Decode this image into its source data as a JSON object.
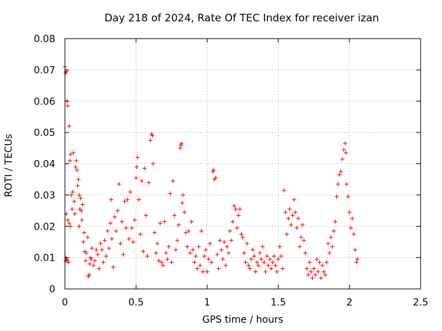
{
  "chart_data": {
    "type": "scatter",
    "title": "Day 218 of 2024, Rate Of TEC Index for receiver izan",
    "xlabel": "GPS time / hours",
    "ylabel": "ROTI / TECUs",
    "xlim": [
      0,
      2.5
    ],
    "ylim": [
      0,
      0.08
    ],
    "xticks": [
      {
        "value": 0,
        "label": "0"
      },
      {
        "value": 0.5,
        "label": "0.5"
      },
      {
        "value": 1,
        "label": "1"
      },
      {
        "value": 1.5,
        "label": "1.5"
      },
      {
        "value": 2,
        "label": "2"
      },
      {
        "value": 2.5,
        "label": "2.5"
      }
    ],
    "yticks": [
      {
        "value": 0,
        "label": "0"
      },
      {
        "value": 0.01,
        "label": "0.01"
      },
      {
        "value": 0.02,
        "label": "0.02"
      },
      {
        "value": 0.03,
        "label": "0.03"
      },
      {
        "value": 0.04,
        "label": "0.04"
      },
      {
        "value": 0.05,
        "label": "0.05"
      },
      {
        "value": 0.06,
        "label": "0.06"
      },
      {
        "value": 0.07,
        "label": "0.07"
      },
      {
        "value": 0.08,
        "label": "0.08"
      }
    ],
    "grid": true,
    "marker": "+",
    "series": [
      {
        "name": "ROTI",
        "color": "#ff0000",
        "points": [
          [
            0.0,
            0.071
          ],
          [
            0.005,
            0.069
          ],
          [
            0.01,
            0.0695
          ],
          [
            0.01,
            0.024
          ],
          [
            0.005,
            0.009
          ],
          [
            0.008,
            0.01
          ],
          [
            0.012,
            0.0095
          ],
          [
            0.015,
            0.06
          ],
          [
            0.02,
            0.0585
          ],
          [
            0.02,
            0.022
          ],
          [
            0.018,
            0.009
          ],
          [
            0.025,
            0.0085
          ],
          [
            0.03,
            0.052
          ],
          [
            0.03,
            0.021
          ],
          [
            0.035,
            0.041
          ],
          [
            0.04,
            0.043
          ],
          [
            0.045,
            0.03
          ],
          [
            0.04,
            0.02
          ],
          [
            0.05,
            0.0255
          ],
          [
            0.055,
            0.031
          ],
          [
            0.06,
            0.0435
          ],
          [
            0.065,
            0.028
          ],
          [
            0.07,
            0.024
          ],
          [
            0.075,
            0.039
          ],
          [
            0.08,
            0.041
          ],
          [
            0.085,
            0.038
          ],
          [
            0.09,
            0.033
          ],
          [
            0.095,
            0.035
          ],
          [
            0.1,
            0.03
          ],
          [
            0.1,
            0.02
          ],
          [
            0.105,
            0.0255
          ],
          [
            0.11,
            0.029
          ],
          [
            0.115,
            0.025
          ],
          [
            0.12,
            0.022
          ],
          [
            0.125,
            0.027
          ],
          [
            0.13,
            0.015
          ],
          [
            0.135,
            0.018
          ],
          [
            0.14,
            0.012
          ],
          [
            0.145,
            0.009
          ],
          [
            0.15,
            0.0115
          ],
          [
            0.16,
            0.0165
          ],
          [
            0.165,
            0.004
          ],
          [
            0.17,
            0.0045
          ],
          [
            0.175,
            0.008
          ],
          [
            0.18,
            0.01
          ],
          [
            0.185,
            0.0095
          ],
          [
            0.19,
            0.013
          ],
          [
            0.2,
            0.0075
          ],
          [
            0.21,
            0.009
          ],
          [
            0.22,
            0.0125
          ],
          [
            0.23,
            0.011
          ],
          [
            0.24,
            0.0065
          ],
          [
            0.25,
            0.0145
          ],
          [
            0.26,
            0.0125
          ],
          [
            0.27,
            0.0085
          ],
          [
            0.28,
            0.0155
          ],
          [
            0.29,
            0.0105
          ],
          [
            0.3,
            0.0185
          ],
          [
            0.31,
            0.013
          ],
          [
            0.32,
            0.021
          ],
          [
            0.325,
            0.0285
          ],
          [
            0.33,
            0.016
          ],
          [
            0.34,
            0.007
          ],
          [
            0.35,
            0.023
          ],
          [
            0.36,
            0.0185
          ],
          [
            0.37,
            0.025
          ],
          [
            0.38,
            0.0335
          ],
          [
            0.39,
            0.0145
          ],
          [
            0.4,
            0.0215
          ],
          [
            0.41,
            0.011
          ],
          [
            0.42,
            0.028
          ],
          [
            0.43,
            0.0195
          ],
          [
            0.44,
            0.0285
          ],
          [
            0.45,
            0.016
          ],
          [
            0.46,
            0.031
          ],
          [
            0.47,
            0.0195
          ],
          [
            0.48,
            0.015
          ],
          [
            0.49,
            0.022
          ],
          [
            0.5,
            0.0355
          ],
          [
            0.505,
            0.039
          ],
          [
            0.51,
            0.042
          ],
          [
            0.52,
            0.0285
          ],
          [
            0.53,
            0.0175
          ],
          [
            0.54,
            0.0345
          ],
          [
            0.55,
            0.012
          ],
          [
            0.56,
            0.0385
          ],
          [
            0.57,
            0.0235
          ],
          [
            0.58,
            0.0105
          ],
          [
            0.59,
            0.034
          ],
          [
            0.6,
            0.0475
          ],
          [
            0.61,
            0.0495
          ],
          [
            0.615,
            0.049
          ],
          [
            0.62,
            0.04
          ],
          [
            0.63,
            0.018
          ],
          [
            0.64,
            0.0115
          ],
          [
            0.65,
            0.0145
          ],
          [
            0.66,
            0.009
          ],
          [
            0.67,
            0.021
          ],
          [
            0.68,
            0.0085
          ],
          [
            0.69,
            0.0075
          ],
          [
            0.7,
            0.0215
          ],
          [
            0.71,
            0.0115
          ],
          [
            0.72,
            0.0095
          ],
          [
            0.73,
            0.0135
          ],
          [
            0.74,
            0.0305
          ],
          [
            0.75,
            0.0085
          ],
          [
            0.76,
            0.0345
          ],
          [
            0.77,
            0.0235
          ],
          [
            0.78,
            0.0125
          ],
          [
            0.79,
            0.0155
          ],
          [
            0.8,
            0.0205
          ],
          [
            0.81,
            0.045
          ],
          [
            0.815,
            0.046
          ],
          [
            0.82,
            0.0465
          ],
          [
            0.825,
            0.0275
          ],
          [
            0.83,
            0.03
          ],
          [
            0.84,
            0.0245
          ],
          [
            0.85,
            0.018
          ],
          [
            0.86,
            0.0135
          ],
          [
            0.87,
            0.0185
          ],
          [
            0.88,
            0.0115
          ],
          [
            0.89,
            0.0215
          ],
          [
            0.9,
            0.0125
          ],
          [
            0.91,
            0.0085
          ],
          [
            0.92,
            0.0105
          ],
          [
            0.93,
            0.0065
          ],
          [
            0.94,
            0.0135
          ],
          [
            0.95,
            0.0075
          ],
          [
            0.96,
            0.0185
          ],
          [
            0.97,
            0.0055
          ],
          [
            0.98,
            0.0105
          ],
          [
            0.99,
            0.0125
          ],
          [
            1.0,
            0.0055
          ],
          [
            1.01,
            0.0095
          ],
          [
            1.02,
            0.0145
          ],
          [
            1.03,
            0.0085
          ],
          [
            1.04,
            0.0375
          ],
          [
            1.045,
            0.038
          ],
          [
            1.05,
            0.035
          ],
          [
            1.06,
            0.0355
          ],
          [
            1.07,
            0.011
          ],
          [
            1.08,
            0.0065
          ],
          [
            1.09,
            0.0155
          ],
          [
            1.1,
            0.0125
          ],
          [
            1.11,
            0.0095
          ],
          [
            1.12,
            0.015
          ],
          [
            1.13,
            0.0075
          ],
          [
            1.14,
            0.0135
          ],
          [
            1.15,
            0.0115
          ],
          [
            1.16,
            0.0185
          ],
          [
            1.17,
            0.0155
          ],
          [
            1.18,
            0.0215
          ],
          [
            1.19,
            0.0265
          ],
          [
            1.2,
            0.0255
          ],
          [
            1.21,
            0.0195
          ],
          [
            1.22,
            0.0235
          ],
          [
            1.23,
            0.0255
          ],
          [
            1.24,
            0.0175
          ],
          [
            1.25,
            0.0165
          ],
          [
            1.26,
            0.0115
          ],
          [
            1.27,
            0.0085
          ],
          [
            1.28,
            0.0145
          ],
          [
            1.29,
            0.0075
          ],
          [
            1.3,
            0.0065
          ],
          [
            1.31,
            0.0095
          ],
          [
            1.32,
            0.0125
          ],
          [
            1.33,
            0.0105
          ],
          [
            1.34,
            0.0055
          ],
          [
            1.35,
            0.0085
          ],
          [
            1.36,
            0.0075
          ],
          [
            1.37,
            0.0115
          ],
          [
            1.38,
            0.0095
          ],
          [
            1.39,
            0.0135
          ],
          [
            1.4,
            0.0085
          ],
          [
            1.41,
            0.0055
          ],
          [
            1.42,
            0.0105
          ],
          [
            1.43,
            0.0075
          ],
          [
            1.44,
            0.0095
          ],
          [
            1.45,
            0.0065
          ],
          [
            1.46,
            0.0085
          ],
          [
            1.47,
            0.0105
          ],
          [
            1.48,
            0.0075
          ],
          [
            1.49,
            0.0055
          ],
          [
            1.5,
            0.0095
          ],
          [
            1.51,
            0.0135
          ],
          [
            1.52,
            0.0105
          ],
          [
            1.53,
            0.0065
          ],
          [
            1.54,
            0.0315
          ],
          [
            1.55,
            0.0245
          ],
          [
            1.56,
            0.0175
          ],
          [
            1.57,
            0.0225
          ],
          [
            1.58,
            0.0255
          ],
          [
            1.59,
            0.0205
          ],
          [
            1.6,
            0.0235
          ],
          [
            1.61,
            0.0285
          ],
          [
            1.62,
            0.0245
          ],
          [
            1.63,
            0.0195
          ],
          [
            1.64,
            0.0225
          ],
          [
            1.65,
            0.0135
          ],
          [
            1.66,
            0.0165
          ],
          [
            1.67,
            0.0205
          ],
          [
            1.68,
            0.0155
          ],
          [
            1.69,
            0.0115
          ],
          [
            1.7,
            0.0065
          ],
          [
            1.71,
            0.0045
          ],
          [
            1.72,
            0.0085
          ],
          [
            1.73,
            0.0055
          ],
          [
            1.74,
            0.0035
          ],
          [
            1.75,
            0.0065
          ],
          [
            1.76,
            0.0045
          ],
          [
            1.77,
            0.0095
          ],
          [
            1.78,
            0.0055
          ],
          [
            1.79,
            0.0085
          ],
          [
            1.8,
            0.0035
          ],
          [
            1.81,
            0.0075
          ],
          [
            1.82,
            0.0055
          ],
          [
            1.83,
            0.0045
          ],
          [
            1.84,
            0.0085
          ],
          [
            1.85,
            0.0145
          ],
          [
            1.86,
            0.0115
          ],
          [
            1.87,
            0.0165
          ],
          [
            1.88,
            0.0135
          ],
          [
            1.89,
            0.0185
          ],
          [
            1.9,
            0.0215
          ],
          [
            1.91,
            0.0295
          ],
          [
            1.92,
            0.0335
          ],
          [
            1.93,
            0.0365
          ],
          [
            1.94,
            0.0375
          ],
          [
            1.95,
            0.0415
          ],
          [
            1.96,
            0.0445
          ],
          [
            1.97,
            0.0465
          ],
          [
            1.975,
            0.0435
          ],
          [
            1.98,
            0.0335
          ],
          [
            1.99,
            0.0295
          ],
          [
            2.0,
            0.0245
          ],
          [
            2.01,
            0.0195
          ],
          [
            2.02,
            0.0225
          ],
          [
            2.03,
            0.0175
          ],
          [
            2.04,
            0.0125
          ],
          [
            2.05,
            0.0085
          ],
          [
            2.055,
            0.0095
          ]
        ]
      }
    ]
  }
}
